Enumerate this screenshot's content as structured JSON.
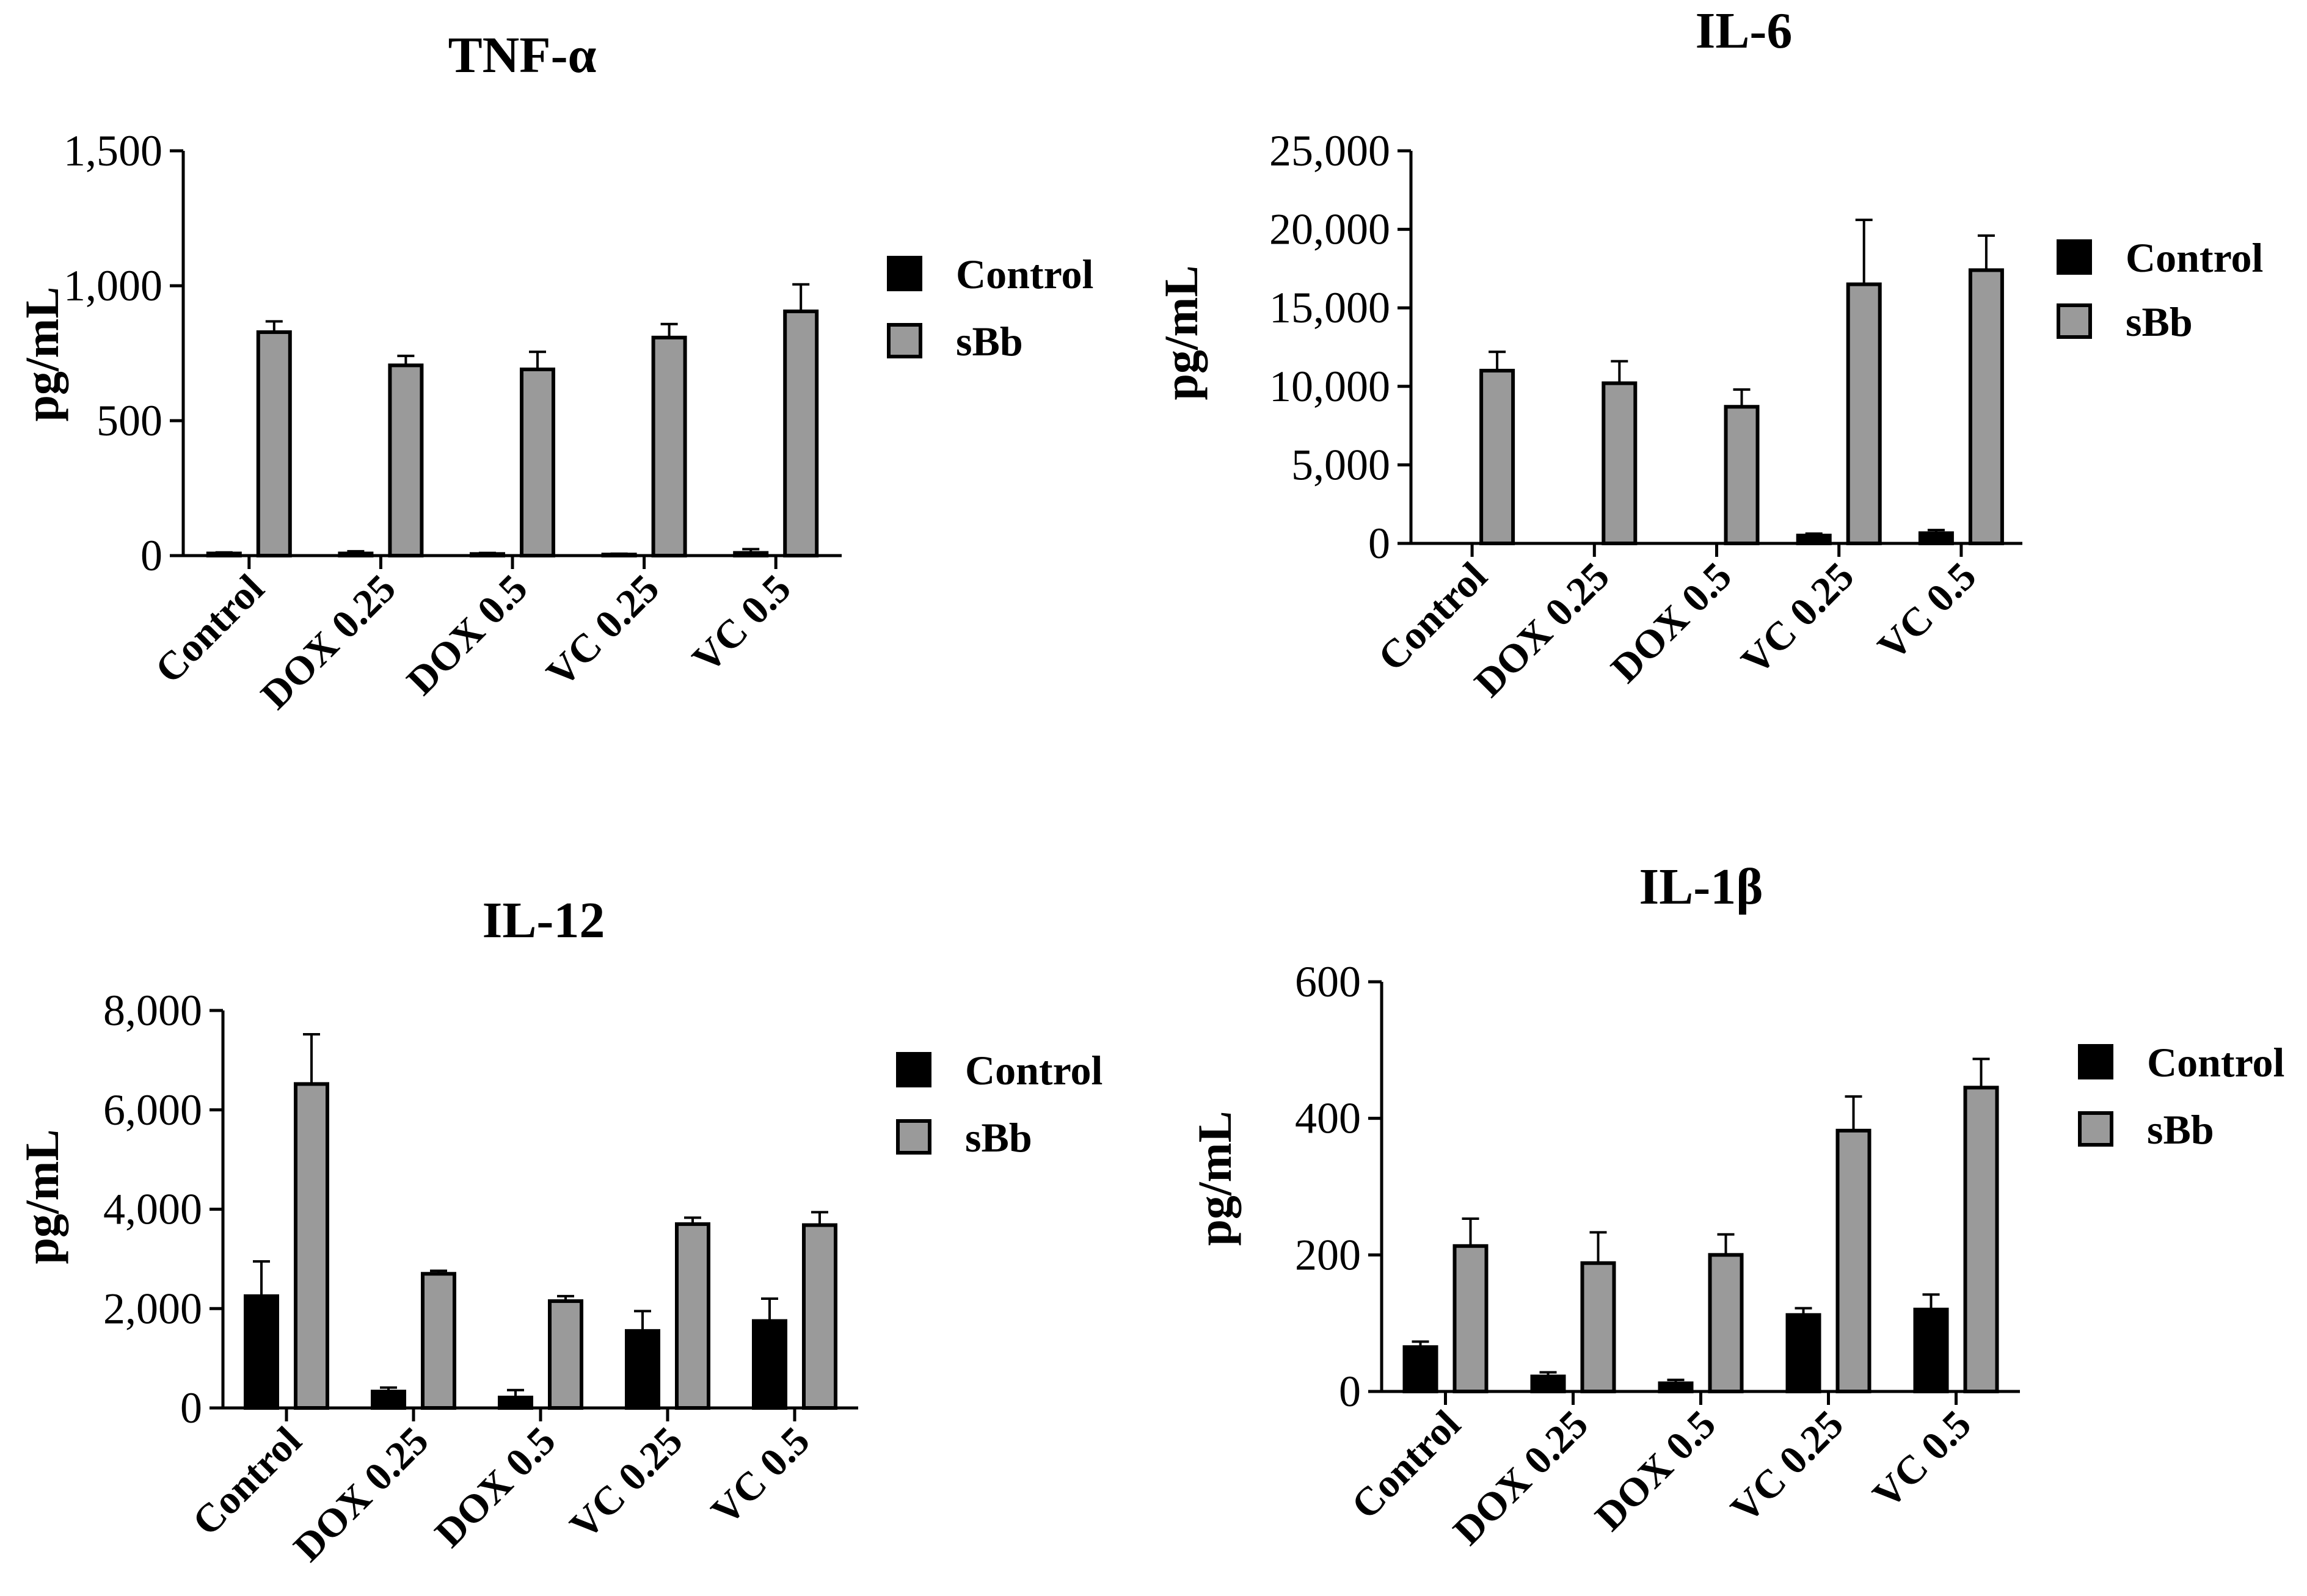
{
  "figure": {
    "legend_entries": [
      "Control",
      "sBb"
    ],
    "colors": {
      "control": "#000000",
      "sbb": "#9a9a9a",
      "axis": "#000000"
    }
  },
  "chart_data": [
    {
      "type": "bar",
      "title": "TNF-α",
      "xlabel": "",
      "ylabel": "pg/mL",
      "ylim": [
        0,
        1500
      ],
      "yticks": [
        0,
        500,
        1000,
        1500
      ],
      "ytick_labels": [
        "0",
        "500",
        "1,000",
        "1,500"
      ],
      "categories": [
        "Control",
        "DOX 0.25",
        "DOX 0.5",
        "VC 0.25",
        "VC 0.5"
      ],
      "legend": "right",
      "series": [
        {
          "name": "Control",
          "values": [
            8,
            8,
            6,
            4,
            10
          ],
          "errors": [
            4,
            8,
            4,
            3,
            14
          ]
        },
        {
          "name": "sBb",
          "values": [
            828,
            705,
            690,
            808,
            905
          ],
          "errors": [
            40,
            35,
            65,
            50,
            100
          ]
        }
      ]
    },
    {
      "type": "bar",
      "title": "IL-6",
      "xlabel": "",
      "ylabel": "pg/mL",
      "ylim": [
        0,
        25000
      ],
      "yticks": [
        0,
        5000,
        10000,
        15000,
        20000,
        25000
      ],
      "ytick_labels": [
        "0",
        "5,000",
        "10,000",
        "15,000",
        "20,000",
        "25,000"
      ],
      "categories": [
        "Control",
        "DOX 0.25",
        "DOX 0.5",
        "VC 0.25",
        "VC 0.5"
      ],
      "legend": "right",
      "series": [
        {
          "name": "Control",
          "values": [
            0,
            0,
            0,
            500,
            650
          ],
          "errors": [
            0,
            0,
            0,
            120,
            200
          ]
        },
        {
          "name": "sBb",
          "values": [
            11000,
            10200,
            8700,
            16500,
            17400
          ],
          "errors": [
            1200,
            1400,
            1100,
            4100,
            2200
          ]
        }
      ]
    },
    {
      "type": "bar",
      "title": "IL-12",
      "xlabel": "",
      "ylabel": "pg/mL",
      "ylim": [
        0,
        8000
      ],
      "yticks": [
        0,
        2000,
        4000,
        6000,
        8000
      ],
      "ytick_labels": [
        "0",
        "2,000",
        "4,000",
        "6,000",
        "8,000"
      ],
      "categories": [
        "Control",
        "DOX 0.25",
        "DOX 0.5",
        "VC 0.25",
        "VC 0.5"
      ],
      "legend": "right",
      "series": [
        {
          "name": "Control",
          "values": [
            2250,
            330,
            210,
            1550,
            1750
          ],
          "errors": [
            700,
            80,
            150,
            400,
            450
          ]
        },
        {
          "name": "sBb",
          "values": [
            6520,
            2700,
            2150,
            3700,
            3680
          ],
          "errors": [
            1000,
            60,
            100,
            130,
            260
          ]
        }
      ]
    },
    {
      "type": "bar",
      "title": "IL-1β",
      "xlabel": "",
      "ylabel": "pg/mL",
      "ylim": [
        0,
        600
      ],
      "yticks": [
        0,
        200,
        400,
        600
      ],
      "ytick_labels": [
        "0",
        "200",
        "400",
        "600"
      ],
      "categories": [
        "Control",
        "DOX 0.25",
        "DOX 0.5",
        "VC 0.25",
        "VC 0.5"
      ],
      "legend": "right",
      "series": [
        {
          "name": "Control",
          "values": [
            65,
            22,
            12,
            112,
            120
          ],
          "errors": [
            8,
            6,
            5,
            10,
            22
          ]
        },
        {
          "name": "sBb",
          "values": [
            213,
            188,
            200,
            382,
            445
          ],
          "errors": [
            40,
            45,
            30,
            50,
            42
          ]
        }
      ]
    }
  ]
}
